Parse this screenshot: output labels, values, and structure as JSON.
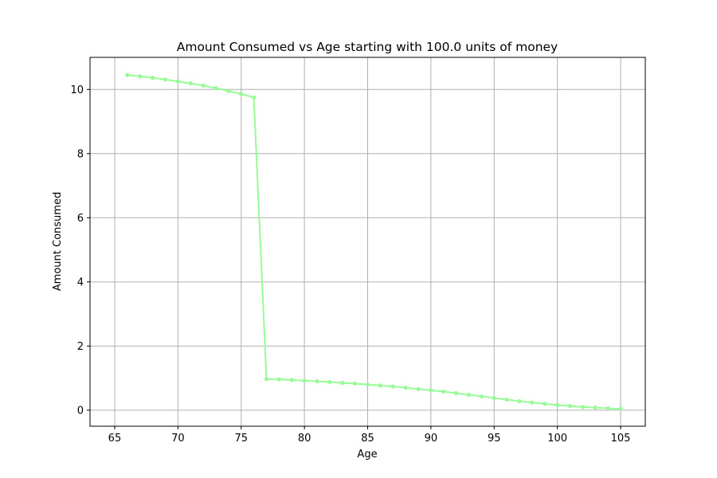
{
  "chart_data": {
    "type": "line",
    "title": "Amount Consumed vs Age starting with 100.0 units of money",
    "xlabel": "Age",
    "ylabel": "Amount Consumed",
    "xlim": [
      63.05,
      106.95
    ],
    "ylim": [
      -0.5,
      11.0
    ],
    "xticks": [
      65,
      70,
      75,
      80,
      85,
      90,
      95,
      100,
      105
    ],
    "yticks": [
      0,
      2,
      4,
      6,
      8,
      10
    ],
    "grid": true,
    "legend": "none",
    "series": [
      {
        "color": "#98fb98",
        "marker": "circle",
        "x": [
          66,
          67,
          68,
          69,
          70,
          71,
          72,
          73,
          74,
          75,
          76,
          77,
          78,
          79,
          80,
          81,
          82,
          83,
          84,
          85,
          86,
          87,
          88,
          89,
          90,
          91,
          92,
          93,
          94,
          95,
          96,
          97,
          98,
          99,
          100,
          101,
          102,
          103,
          104,
          105
        ],
        "y": [
          10.45,
          10.41,
          10.36,
          10.31,
          10.25,
          10.19,
          10.12,
          10.04,
          9.95,
          9.86,
          9.75,
          0.97,
          0.96,
          0.94,
          0.92,
          0.9,
          0.88,
          0.85,
          0.83,
          0.8,
          0.77,
          0.74,
          0.7,
          0.66,
          0.62,
          0.58,
          0.53,
          0.48,
          0.43,
          0.38,
          0.33,
          0.28,
          0.24,
          0.2,
          0.16,
          0.13,
          0.1,
          0.08,
          0.06,
          0.04
        ]
      }
    ]
  }
}
